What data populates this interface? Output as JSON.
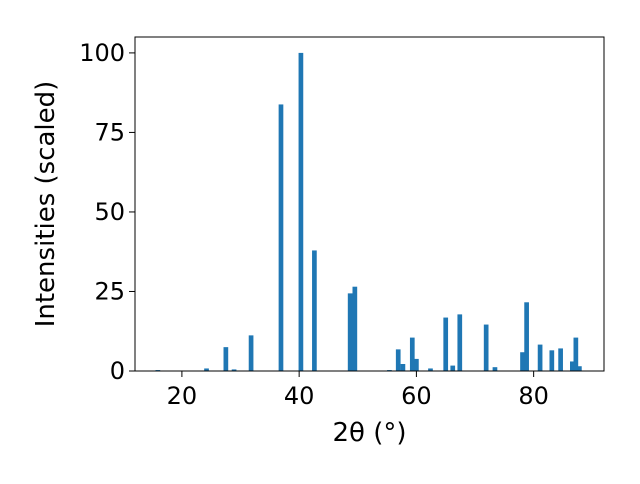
{
  "chart_data": {
    "type": "bar",
    "xlabel": "2θ (°)",
    "ylabel": "Intensities (scaled)",
    "title": "",
    "xlim": [
      12,
      92
    ],
    "ylim": [
      0,
      105
    ],
    "xticks": [
      20,
      40,
      60,
      80
    ],
    "yticks": [
      0,
      25,
      50,
      75,
      100
    ],
    "bar_width": 0.8,
    "grid": false,
    "legend": "none",
    "color": "#1f77b4",
    "x": [
      15.9,
      24.2,
      27.5,
      28.9,
      31.8,
      36.9,
      40.3,
      42.6,
      48.7,
      49.5,
      55.4,
      56.9,
      57.7,
      59.3,
      60.0,
      62.4,
      65.0,
      66.2,
      67.4,
      71.9,
      73.4,
      78.1,
      78.8,
      81.1,
      83.1,
      84.6,
      86.6,
      87.2,
      87.8
    ],
    "values": [
      0.3,
      0.8,
      7.5,
      0.5,
      11.2,
      83.8,
      100.0,
      37.9,
      24.4,
      26.5,
      0.3,
      6.8,
      2.2,
      10.5,
      3.8,
      0.8,
      16.8,
      1.7,
      17.8,
      14.6,
      1.2,
      5.9,
      21.6,
      8.3,
      6.5,
      7.1,
      3.0,
      10.5,
      1.5
    ]
  }
}
